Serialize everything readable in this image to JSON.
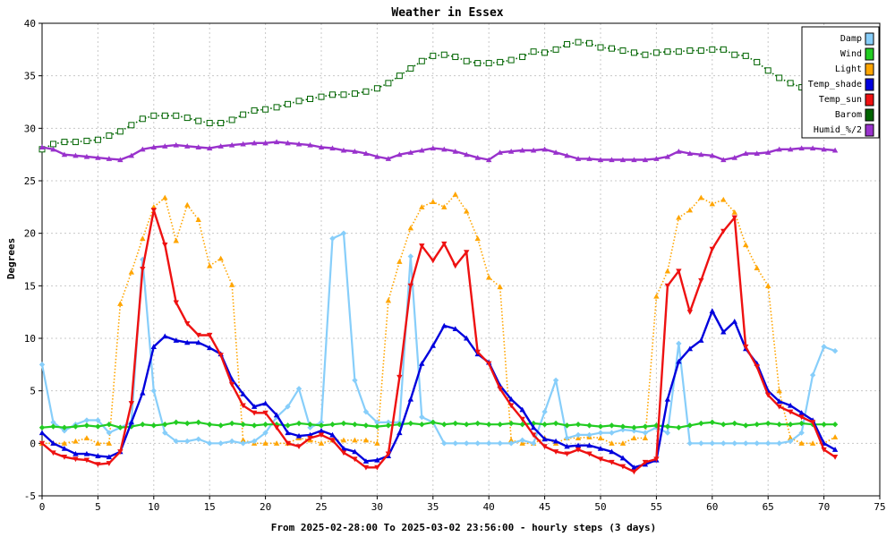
{
  "chart_data": {
    "type": "line",
    "title": "Weather in Essex",
    "ylabel": "Degrees",
    "xlabel": "From 2025-02-28:00 To 2025-03-02 23:56:00 - hourly steps (3 days)",
    "xlim": [
      0,
      75
    ],
    "ylim": [
      -5,
      40
    ],
    "xticks": [
      0,
      5,
      10,
      15,
      20,
      25,
      30,
      35,
      40,
      45,
      50,
      55,
      60,
      65,
      70,
      75
    ],
    "yticks": [
      -5,
      0,
      5,
      10,
      15,
      20,
      25,
      30,
      35,
      40
    ],
    "grid": true,
    "legend_position": "top-right",
    "series": [
      {
        "name": "Damp",
        "color": "#87cefa",
        "marker": "diamond",
        "style": "solid",
        "values": [
          7.5,
          2,
          1.2,
          1.8,
          2.2,
          2.2,
          1,
          1.5,
          2,
          17.5,
          5,
          1,
          0.2,
          0.2,
          0.4,
          0,
          0,
          0.2,
          0,
          0.2,
          1,
          2.5,
          3.5,
          5.2,
          1.5,
          2,
          19.5,
          20,
          6,
          3,
          2,
          2,
          2,
          17.8,
          2.5,
          2,
          0,
          0,
          0,
          0,
          0,
          0,
          0,
          0.3,
          0,
          3,
          6,
          0.5,
          0.8,
          0.8,
          1,
          1,
          1.3,
          1.2,
          1,
          1.5,
          1,
          9.5,
          0,
          0,
          0,
          0,
          0,
          0,
          0,
          0,
          0,
          0.2,
          1,
          6.5,
          9.2,
          8.8
        ]
      },
      {
        "name": "Wind",
        "color": "#22cc22",
        "marker": "diamond",
        "style": "solid",
        "values": [
          1.5,
          1.6,
          1.5,
          1.6,
          1.7,
          1.6,
          1.8,
          1.5,
          1.6,
          1.8,
          1.7,
          1.8,
          2,
          1.9,
          2,
          1.8,
          1.7,
          1.9,
          1.8,
          1.7,
          1.8,
          1.8,
          1.7,
          1.9,
          1.8,
          1.7,
          1.8,
          1.9,
          1.8,
          1.7,
          1.6,
          1.7,
          1.8,
          1.9,
          1.8,
          2,
          1.8,
          1.9,
          1.8,
          1.9,
          1.8,
          1.8,
          1.9,
          1.8,
          1.9,
          1.8,
          1.9,
          1.7,
          1.8,
          1.7,
          1.6,
          1.7,
          1.6,
          1.5,
          1.6,
          1.7,
          1.6,
          1.5,
          1.7,
          1.9,
          2,
          1.8,
          1.9,
          1.7,
          1.8,
          1.9,
          1.8,
          1.8,
          1.9,
          1.8,
          1.8,
          1.8
        ]
      },
      {
        "name": "Light",
        "color": "#ffa500",
        "marker": "triangle-up",
        "style": "dotted",
        "values": [
          0,
          0,
          0,
          0.2,
          0.5,
          0,
          0,
          13.3,
          16.3,
          19.5,
          22.5,
          23.4,
          19.3,
          22.7,
          21.3,
          16.9,
          17.6,
          15.1,
          0.3,
          0,
          0,
          0,
          0,
          0.5,
          0.3,
          0,
          0.3,
          0.3,
          0.3,
          0.3,
          0,
          13.6,
          17.3,
          20.5,
          22.5,
          23,
          22.5,
          23.7,
          22.1,
          19.5,
          15.8,
          14.9,
          0.3,
          0,
          0,
          0.5,
          0,
          0.5,
          0.5,
          0.6,
          0.5,
          0,
          0,
          0.5,
          0.5,
          14,
          16.4,
          21.5,
          22.2,
          23.4,
          22.8,
          23.2,
          22,
          18.9,
          16.7,
          15,
          5,
          0.5,
          0,
          0,
          0,
          0.6
        ]
      },
      {
        "name": "Temp_shade",
        "color": "#0000dd",
        "marker": "triangle-up",
        "style": "solid",
        "values": [
          1,
          0,
          -0.5,
          -1,
          -1,
          -1.2,
          -1.3,
          -0.8,
          2,
          4.8,
          9.2,
          10.2,
          9.8,
          9.6,
          9.6,
          9.1,
          8.5,
          6.1,
          4.7,
          3.5,
          3.8,
          2.7,
          1,
          0.7,
          0.8,
          1.2,
          0.8,
          -0.5,
          -0.8,
          -1.7,
          -1.6,
          -1.2,
          1,
          4.2,
          7.6,
          9.3,
          11.2,
          10.9,
          10,
          8.5,
          7.7,
          5.5,
          4.2,
          3.2,
          1.5,
          0.4,
          0.2,
          -0.3,
          -0.2,
          -0.2,
          -0.5,
          -0.8,
          -1.4,
          -2.3,
          -2,
          -1.6,
          4.2,
          7.8,
          9,
          9.8,
          12.6,
          10.6,
          11.6,
          9,
          7.6,
          5,
          4,
          3.6,
          2.9,
          2.2,
          0,
          -0.6
        ]
      },
      {
        "name": "Temp_sun",
        "color": "#ee1111",
        "marker": "triangle-down",
        "style": "solid",
        "values": [
          0,
          -0.9,
          -1.3,
          -1.5,
          -1.6,
          -2,
          -1.9,
          -0.8,
          3.8,
          16.6,
          22.2,
          18.9,
          13.4,
          11.4,
          10.3,
          10.3,
          8.4,
          5.6,
          3.6,
          2.9,
          2.9,
          1.5,
          0,
          -0.3,
          0.5,
          0.8,
          0.3,
          -0.9,
          -1.5,
          -2.3,
          -2.3,
          -1,
          6.3,
          15,
          18.8,
          17.4,
          19,
          16.9,
          18.2,
          8.7,
          7.6,
          5.2,
          3.6,
          2.3,
          0.8,
          -0.3,
          -0.8,
          -1,
          -0.6,
          -1,
          -1.5,
          -1.8,
          -2.2,
          -2.7,
          -1.8,
          -1.5,
          15,
          16.4,
          12.5,
          15.5,
          18.5,
          20.2,
          21.5,
          9.2,
          7.3,
          4.6,
          3.5,
          3,
          2.5,
          2,
          -0.6,
          -1.3
        ]
      },
      {
        "name": "Barom",
        "color": "#006400",
        "marker": "square-hollow",
        "style": "dotted",
        "values": [
          28,
          28.5,
          28.7,
          28.7,
          28.8,
          28.9,
          29.3,
          29.7,
          30.3,
          30.9,
          31.2,
          31.2,
          31.2,
          31,
          30.7,
          30.5,
          30.5,
          30.8,
          31.3,
          31.7,
          31.8,
          32,
          32.3,
          32.6,
          32.8,
          33,
          33.2,
          33.2,
          33.3,
          33.5,
          33.8,
          34.3,
          35,
          35.7,
          36.4,
          36.9,
          37,
          36.8,
          36.4,
          36.2,
          36.2,
          36.3,
          36.5,
          36.8,
          37.3,
          37.2,
          37.5,
          38,
          38.2,
          38.1,
          37.7,
          37.6,
          37.4,
          37.2,
          37,
          37.2,
          37.3,
          37.3,
          37.4,
          37.4,
          37.5,
          37.5,
          37,
          36.9,
          36.3,
          35.5,
          34.8,
          34.3,
          33.9,
          33.7,
          33.6,
          33.6
        ]
      },
      {
        "name": "Humid_%/2",
        "color": "#9932cc",
        "marker": "triangle-up",
        "style": "solid",
        "values": [
          28.2,
          28,
          27.5,
          27.4,
          27.3,
          27.2,
          27.1,
          27,
          27.4,
          28,
          28.2,
          28.3,
          28.4,
          28.3,
          28.2,
          28.1,
          28.3,
          28.4,
          28.5,
          28.6,
          28.6,
          28.7,
          28.6,
          28.5,
          28.4,
          28.2,
          28.1,
          27.9,
          27.8,
          27.6,
          27.3,
          27.1,
          27.5,
          27.7,
          27.9,
          28.1,
          28,
          27.8,
          27.5,
          27.2,
          27,
          27.7,
          27.8,
          27.9,
          27.9,
          28,
          27.7,
          27.4,
          27.1,
          27.1,
          27,
          27,
          27,
          27,
          27,
          27.1,
          27.3,
          27.8,
          27.6,
          27.5,
          27.4,
          27,
          27.2,
          27.6,
          27.6,
          27.7,
          28,
          28,
          28.1,
          28.1,
          28,
          27.9
        ]
      }
    ]
  }
}
